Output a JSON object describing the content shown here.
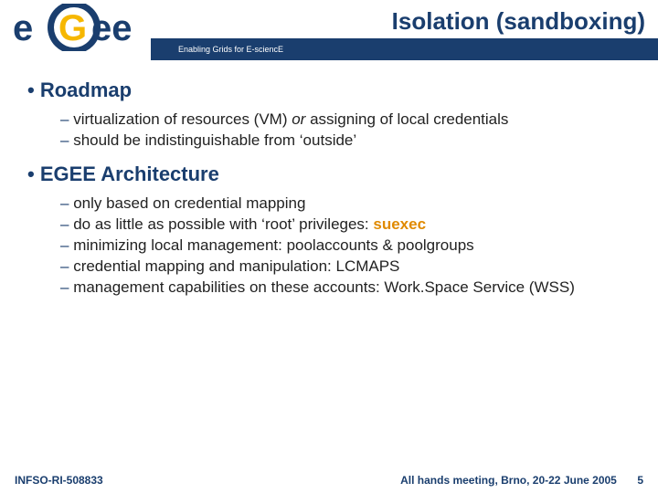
{
  "colors": {
    "brand_blue": "#1a3e6e",
    "accent_orange": "#e08a00",
    "logo_yellow": "#f6b700",
    "text": "#222222",
    "background": "#ffffff"
  },
  "typography": {
    "title_fontsize": 26,
    "section_fontsize": 22,
    "body_fontsize": 17,
    "footer_fontsize": 12,
    "font_family": "Arial"
  },
  "header": {
    "title": "Isolation (sandboxing)",
    "tagline": "Enabling Grids for E-sciencE",
    "logo_text_top": "e",
    "logo_text_bottom": "ee",
    "logo_text_g": "G"
  },
  "sections": [
    {
      "heading": "Roadmap",
      "items": [
        {
          "html": "virtualization of resources (VM) <em class=\"ital\">or</em> assigning of local credentials"
        },
        {
          "html": "should be indistinguishable from ‘outside’"
        }
      ]
    },
    {
      "heading": "EGEE Architecture",
      "items": [
        {
          "html": "only based on credential mapping"
        },
        {
          "html": "do as little as possible with ‘root’ privileges: <span class=\"hl\">suexec</span>"
        },
        {
          "html": "minimizing local management: poolaccounts & poolgroups"
        },
        {
          "html": "credential mapping and manipulation: LCMAPS"
        },
        {
          "html": "management capabilities on these accounts: Work.Space Service (WSS)"
        }
      ]
    }
  ],
  "footer": {
    "left": "INFSO-RI-508833",
    "right": "All hands meeting, Brno, 20-22 June 2005",
    "page": "5"
  }
}
